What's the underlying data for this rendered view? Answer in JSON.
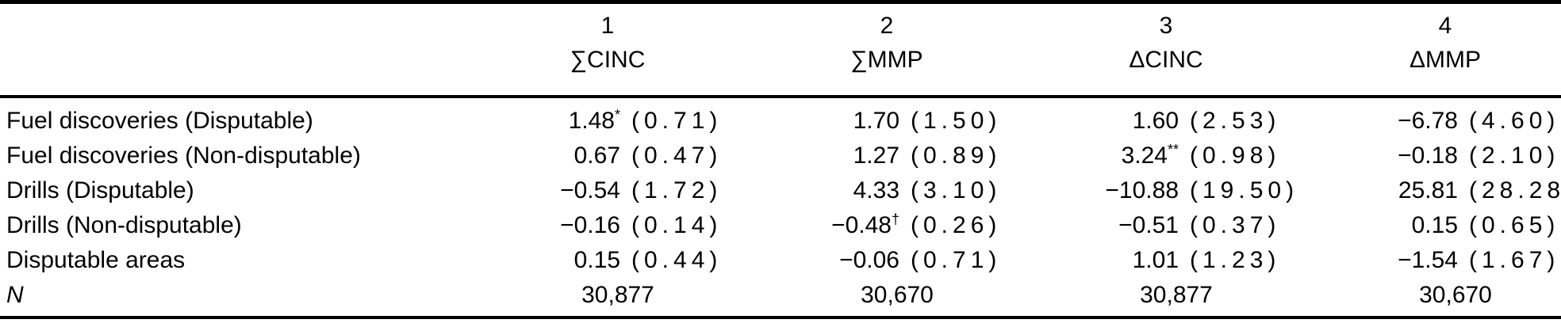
{
  "table": {
    "columns": [
      {
        "number": "1",
        "label": "∑CINC"
      },
      {
        "number": "2",
        "label": "∑MMP"
      },
      {
        "number": "3",
        "label": "ΔCINC"
      },
      {
        "number": "4",
        "label": "ΔMMP"
      }
    ],
    "rows": [
      {
        "label": "Fuel discoveries (Disputable)",
        "cells": [
          {
            "est": "1.48",
            "sup": "*",
            "se": "(0.71)"
          },
          {
            "est": "1.70",
            "sup": "",
            "se": "(1.50)"
          },
          {
            "est": "1.60",
            "sup": "",
            "se": "(2.53)"
          },
          {
            "est": "−6.78",
            "sup": "",
            "se": "(4.60)"
          }
        ]
      },
      {
        "label": "Fuel discoveries (Non-disputable)",
        "cells": [
          {
            "est": "0.67",
            "sup": "",
            "se": "(0.47)"
          },
          {
            "est": "1.27",
            "sup": "",
            "se": "(0.89)"
          },
          {
            "est": "3.24",
            "sup": "**",
            "se": "(0.98)"
          },
          {
            "est": "−0.18",
            "sup": "",
            "se": "(2.10)"
          }
        ]
      },
      {
        "label": "Drills (Disputable)",
        "cells": [
          {
            "est": "−0.54",
            "sup": "",
            "se": "(1.72)"
          },
          {
            "est": "4.33",
            "sup": "",
            "se": "(3.10)"
          },
          {
            "est": "−10.88",
            "sup": "",
            "se": "(19.50)"
          },
          {
            "est": "25.81",
            "sup": "",
            "se": "(28.28)"
          }
        ]
      },
      {
        "label": "Drills (Non-disputable)",
        "cells": [
          {
            "est": "−0.16",
            "sup": "",
            "se": "(0.14)"
          },
          {
            "est": "−0.48",
            "sup": "†",
            "se": "(0.26)"
          },
          {
            "est": "−0.51",
            "sup": "",
            "se": "(0.37)"
          },
          {
            "est": "0.15",
            "sup": "",
            "se": "(0.65)"
          }
        ]
      },
      {
        "label": "Disputable areas",
        "cells": [
          {
            "est": "0.15",
            "sup": "",
            "se": "(0.44)"
          },
          {
            "est": "−0.06",
            "sup": "",
            "se": "(0.71)"
          },
          {
            "est": "1.01",
            "sup": "",
            "se": "(1.23)"
          },
          {
            "est": "−1.54",
            "sup": "",
            "se": "(1.67)"
          }
        ]
      }
    ],
    "n_row": {
      "label": "N",
      "values": [
        "30,877",
        "30,670",
        "30,877",
        "30,670"
      ]
    }
  }
}
